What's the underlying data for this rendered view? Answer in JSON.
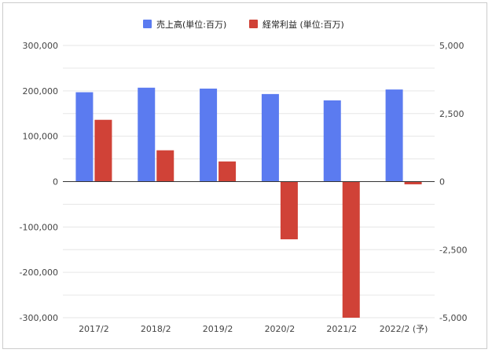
{
  "chart_data": {
    "type": "bar",
    "categories": [
      "2017/2",
      "2018/2",
      "2019/2",
      "2020/2",
      "2021/2",
      "2022/2 (予)"
    ],
    "series": [
      {
        "name": "売上高(単位:百万)",
        "axis": "left",
        "color": "#5b7bf0",
        "values": [
          197000,
          207000,
          205000,
          193000,
          179000,
          203000
        ]
      },
      {
        "name": "経常利益 (単位:百万)",
        "axis": "right",
        "color": "#d04237",
        "values": [
          2270,
          1150,
          740,
          -2120,
          -5000,
          -100
        ]
      }
    ],
    "y_left": {
      "range": [
        -300000,
        300000
      ],
      "ticks": [
        300000,
        200000,
        100000,
        0,
        -100000,
        -200000,
        -300000
      ],
      "tick_labels": [
        "300,000",
        "200,000",
        "100,000",
        "0",
        "-100,000",
        "-200,000",
        "-300,000"
      ]
    },
    "y_right": {
      "range": [
        -5000,
        5000
      ],
      "ticks": [
        5000,
        2500,
        0,
        -2500,
        -5000
      ],
      "tick_labels": [
        "5,000",
        "2,500",
        "0",
        "-2,500",
        "-5,000"
      ]
    },
    "grid": true,
    "legend_position": "top"
  },
  "colors": {
    "grid": "#e6e6e6",
    "zero_line": "#333333",
    "tick_text": "#444444"
  }
}
